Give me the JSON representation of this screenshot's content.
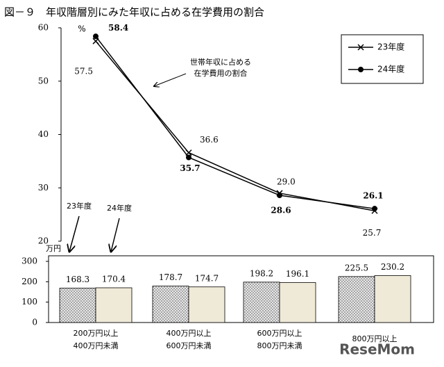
{
  "title": "図－９　年収階層別にみた年収に占める在学費用の割合",
  "watermark": "ReseMom",
  "chart_data": [
    {
      "type": "line",
      "unit_label": "%",
      "annotation": [
        "世帯年収に占める",
        "在学費用の割合"
      ],
      "ylim": [
        20,
        60
      ],
      "yticks": [
        20,
        30,
        40,
        50,
        60
      ],
      "legend": "upper right",
      "series": [
        {
          "name": "23年度",
          "color": "#000000",
          "marker": "x",
          "values": [
            57.5,
            36.6,
            29.0,
            25.7
          ],
          "value_labels": [
            "57.5",
            "36.6",
            "29.0",
            "25.7"
          ]
        },
        {
          "name": "24年度",
          "color": "#000000",
          "marker": "circle",
          "values": [
            58.4,
            35.7,
            28.6,
            26.1
          ]
        }
      ]
    },
    {
      "type": "bar",
      "unit_label": "万円",
      "categories": [
        [
          "200万円以上",
          "400万円未満"
        ],
        [
          "400万円以上",
          "600万円未満"
        ],
        [
          "600万円以上",
          "800万円未満"
        ],
        [
          "800万円以上"
        ]
      ],
      "annotations": [
        "23年度",
        "24年度"
      ],
      "ylim": [
        0,
        300
      ],
      "yticks": [
        0,
        100,
        200,
        300
      ],
      "series": [
        {
          "name": "23年度",
          "color": "#d9d9d9",
          "pattern": "dots",
          "values": [
            168.3,
            178.7,
            198.2,
            225.5
          ]
        },
        {
          "name": "24年度",
          "color": "#efe9d8",
          "values": [
            170.4,
            174.7,
            196.1,
            230.2
          ]
        }
      ]
    }
  ]
}
